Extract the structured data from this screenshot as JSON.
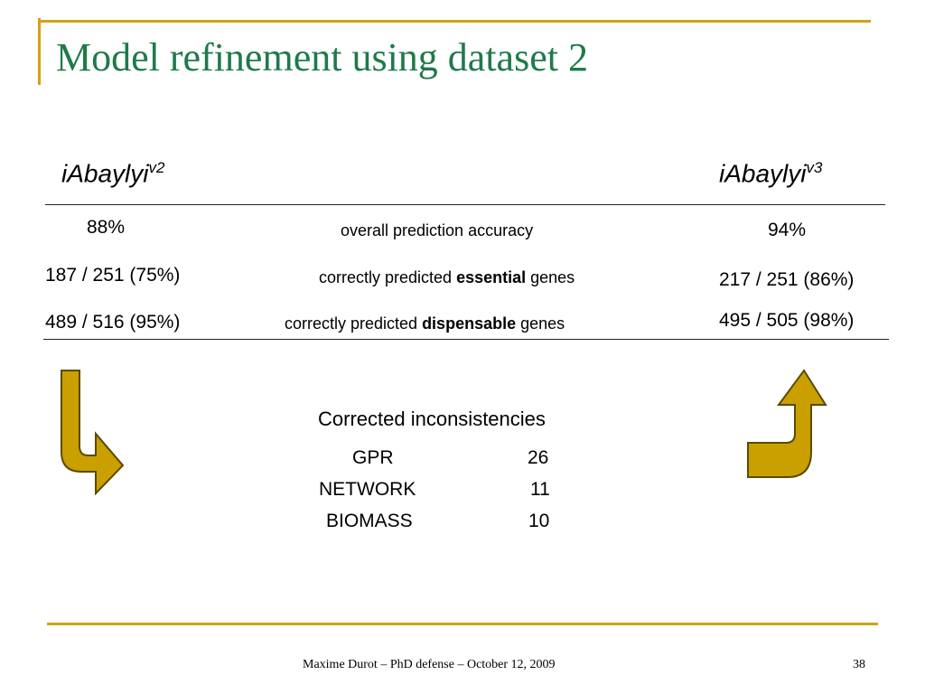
{
  "slide": {
    "title": "Model refinement using dataset 2",
    "accent_color": "#d4a017",
    "title_color": "#1e7a4a"
  },
  "models": {
    "left": {
      "name": "iAbaylyi",
      "version": "v2"
    },
    "right": {
      "name": "iAbaylyi",
      "version": "v3"
    }
  },
  "comparison": {
    "rows": [
      {
        "left": "88%",
        "label_pre": "overall prediction accuracy",
        "label_bold": "",
        "label_post": "",
        "right": "94%"
      },
      {
        "left": "187 / 251 (75%)",
        "label_pre": "correctly predicted ",
        "label_bold": "essential",
        "label_post": " genes",
        "right": "217 / 251 (86%)"
      },
      {
        "left": "489 / 516 (95%)",
        "label_pre": "correctly predicted ",
        "label_bold": "dispensable",
        "label_post": " genes",
        "right": "495 / 505 (98%)"
      }
    ]
  },
  "corrections": {
    "title": "Corrected inconsistencies",
    "items": [
      {
        "type": "GPR",
        "count": "26"
      },
      {
        "type": "NETWORK",
        "count": "11"
      },
      {
        "type": "BIOMASS",
        "count": "10"
      }
    ]
  },
  "arrows": {
    "fill": "#c9a000",
    "stroke": "#5a4a00"
  },
  "footer": {
    "text": "Maxime Durot – PhD defense – October 12, 2009",
    "page": "38"
  }
}
